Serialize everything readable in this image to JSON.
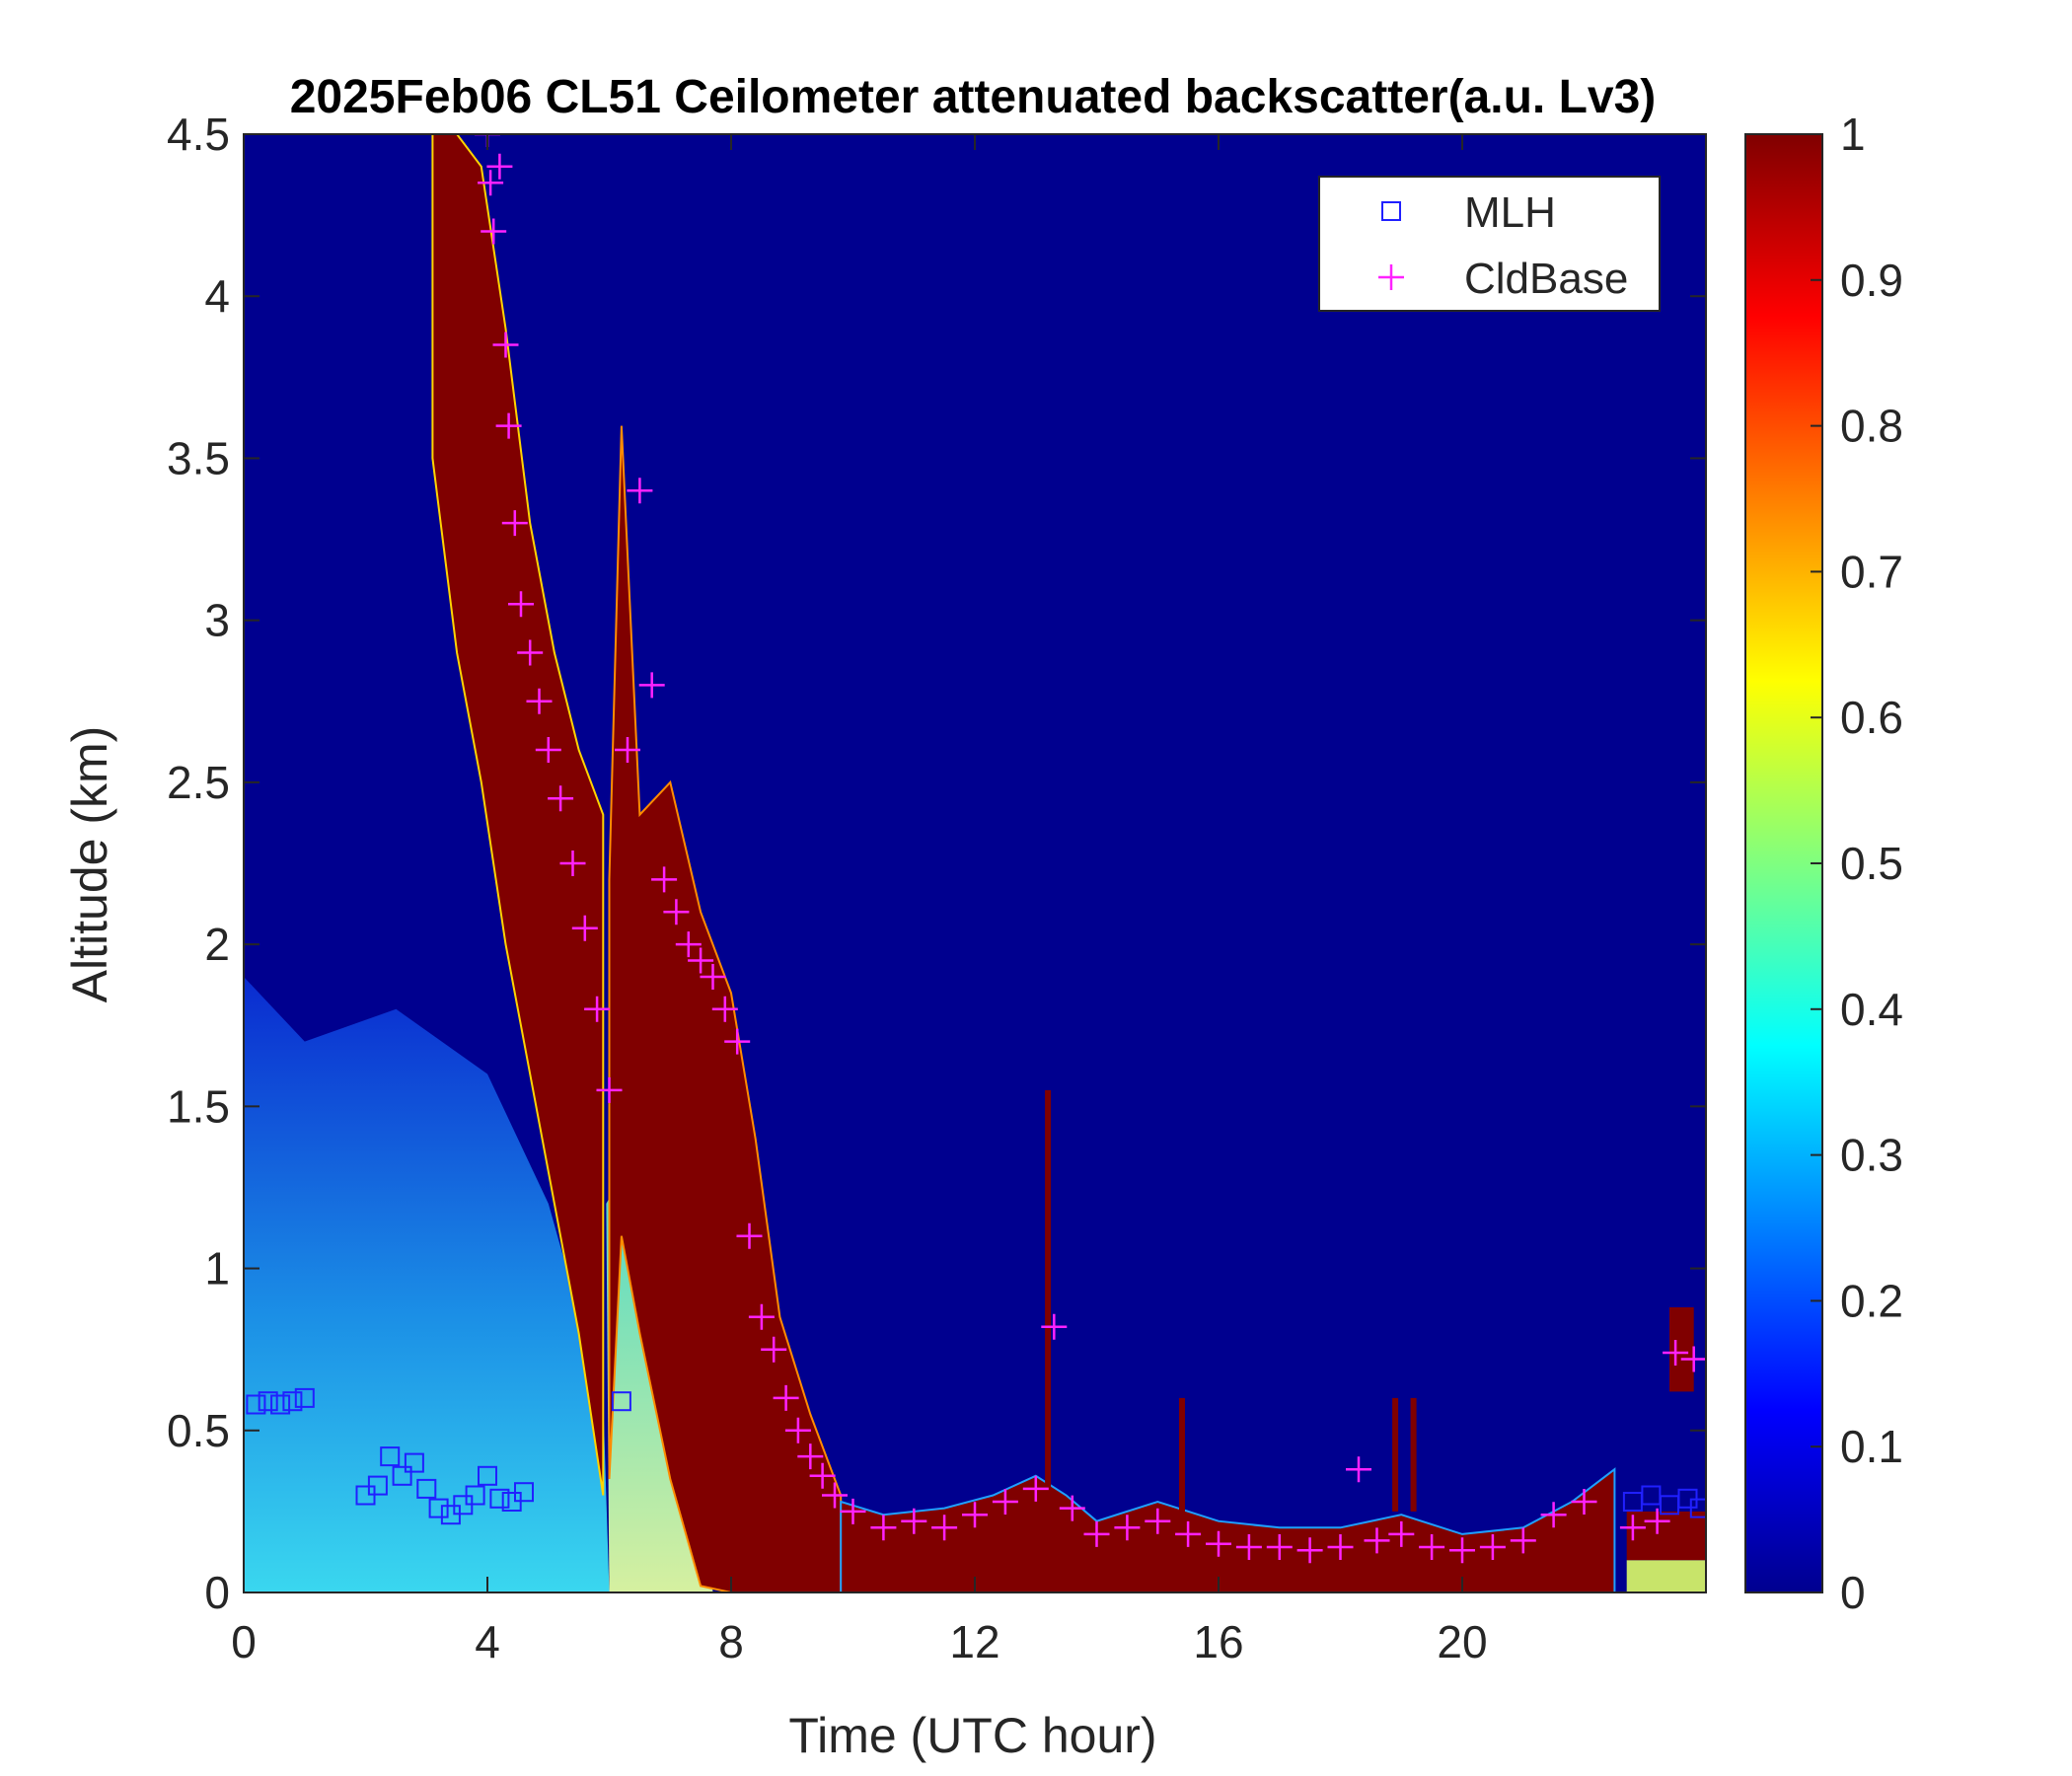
{
  "chart_data": {
    "type": "heatmap",
    "title": "2025Feb06 CL51 Ceilometer attenuated backscatter(a.u. Lv3)",
    "xlabel": "Time (UTC hour)",
    "ylabel": "Altitude (km)",
    "xlim": [
      0,
      24
    ],
    "ylim": [
      0,
      4.5
    ],
    "x_ticks": [
      {
        "value": 0,
        "label": "0"
      },
      {
        "value": 4,
        "label": "4"
      },
      {
        "value": 8,
        "label": "8"
      },
      {
        "value": 12,
        "label": "12"
      },
      {
        "value": 16,
        "label": "16"
      },
      {
        "value": 20,
        "label": "20"
      }
    ],
    "y_ticks": [
      {
        "value": 0,
        "label": "0"
      },
      {
        "value": 0.5,
        "label": "0.5"
      },
      {
        "value": 1,
        "label": "1"
      },
      {
        "value": 1.5,
        "label": "1.5"
      },
      {
        "value": 2,
        "label": "2"
      },
      {
        "value": 2.5,
        "label": "2.5"
      },
      {
        "value": 3,
        "label": "3"
      },
      {
        "value": 3.5,
        "label": "3.5"
      },
      {
        "value": 4,
        "label": "4"
      },
      {
        "value": 4.5,
        "label": "4.5"
      }
    ],
    "colorbar": {
      "colormap": "jet",
      "range": [
        0,
        1
      ],
      "ticks": [
        {
          "value": 0,
          "label": "0"
        },
        {
          "value": 0.1,
          "label": "0.1"
        },
        {
          "value": 0.2,
          "label": "0.2"
        },
        {
          "value": 0.3,
          "label": "0.3"
        },
        {
          "value": 0.4,
          "label": "0.4"
        },
        {
          "value": 0.5,
          "label": "0.5"
        },
        {
          "value": 0.6,
          "label": "0.6"
        },
        {
          "value": 0.7,
          "label": "0.7"
        },
        {
          "value": 0.8,
          "label": "0.8"
        },
        {
          "value": 0.9,
          "label": "0.9"
        },
        {
          "value": 1,
          "label": "1"
        }
      ]
    },
    "legend": {
      "position": "top-right",
      "entries": [
        {
          "label": "MLH",
          "marker": "square",
          "color": "#2020ff"
        },
        {
          "label": "CldBase",
          "marker": "plus",
          "color": "#ff22ff"
        }
      ]
    },
    "background_value": 0.02,
    "upper_cloud_band": [
      {
        "t": 3.1,
        "top": 4.5,
        "bottom": 3.5
      },
      {
        "t": 3.5,
        "top": 4.5,
        "bottom": 2.9
      },
      {
        "t": 3.9,
        "top": 4.4,
        "bottom": 2.5
      },
      {
        "t": 4.3,
        "top": 3.9,
        "bottom": 2.0
      },
      {
        "t": 4.7,
        "top": 3.3,
        "bottom": 1.6
      },
      {
        "t": 5.1,
        "top": 2.9,
        "bottom": 1.2
      },
      {
        "t": 5.5,
        "top": 2.6,
        "bottom": 0.8
      },
      {
        "t": 5.9,
        "top": 2.4,
        "bottom": 0.3
      }
    ],
    "plume_band": [
      {
        "t": 6.0,
        "top": 2.2,
        "bottom": 0.35
      },
      {
        "t": 6.2,
        "top": 3.6,
        "bottom": 1.1
      },
      {
        "t": 6.5,
        "top": 2.4,
        "bottom": 0.8
      },
      {
        "t": 7.0,
        "top": 2.5,
        "bottom": 0.35
      },
      {
        "t": 7.5,
        "top": 2.1,
        "bottom": 0.02
      },
      {
        "t": 8.0,
        "top": 1.85,
        "bottom": 0.0
      },
      {
        "t": 8.4,
        "top": 1.4,
        "bottom": 0.0
      },
      {
        "t": 8.8,
        "top": 0.85,
        "bottom": 0.0
      },
      {
        "t": 9.3,
        "top": 0.55,
        "bottom": 0.0
      },
      {
        "t": 9.8,
        "top": 0.3,
        "bottom": 0.0
      }
    ],
    "surface_layer": [
      {
        "t": 9.8,
        "top": 0.28
      },
      {
        "t": 10.5,
        "top": 0.24
      },
      {
        "t": 11.5,
        "top": 0.26
      },
      {
        "t": 12.3,
        "top": 0.3
      },
      {
        "t": 13.0,
        "top": 0.36
      },
      {
        "t": 13.5,
        "top": 0.3
      },
      {
        "t": 14.0,
        "top": 0.22
      },
      {
        "t": 15.0,
        "top": 0.28
      },
      {
        "t": 16.0,
        "top": 0.22
      },
      {
        "t": 17.0,
        "top": 0.2
      },
      {
        "t": 18.0,
        "top": 0.2
      },
      {
        "t": 19.0,
        "top": 0.24
      },
      {
        "t": 20.0,
        "top": 0.18
      },
      {
        "t": 21.0,
        "top": 0.2
      },
      {
        "t": 21.8,
        "top": 0.28
      },
      {
        "t": 22.5,
        "top": 0.38
      }
    ],
    "mlh_points": [
      {
        "t": 0.2,
        "z": 0.58
      },
      {
        "t": 0.4,
        "z": 0.59
      },
      {
        "t": 0.6,
        "z": 0.58
      },
      {
        "t": 0.8,
        "z": 0.59
      },
      {
        "t": 1.0,
        "z": 0.6
      },
      {
        "t": 2.0,
        "z": 0.3
      },
      {
        "t": 2.2,
        "z": 0.33
      },
      {
        "t": 2.4,
        "z": 0.42
      },
      {
        "t": 2.6,
        "z": 0.36
      },
      {
        "t": 2.8,
        "z": 0.4
      },
      {
        "t": 3.0,
        "z": 0.32
      },
      {
        "t": 3.2,
        "z": 0.26
      },
      {
        "t": 3.4,
        "z": 0.24
      },
      {
        "t": 3.6,
        "z": 0.27
      },
      {
        "t": 3.8,
        "z": 0.3
      },
      {
        "t": 4.0,
        "z": 0.36
      },
      {
        "t": 4.2,
        "z": 0.29
      },
      {
        "t": 4.4,
        "z": 0.28
      },
      {
        "t": 4.6,
        "z": 0.31
      },
      {
        "t": 6.2,
        "z": 0.59
      },
      {
        "t": 22.8,
        "z": 0.28
      },
      {
        "t": 23.1,
        "z": 0.3
      },
      {
        "t": 23.4,
        "z": 0.27
      },
      {
        "t": 23.7,
        "z": 0.29
      },
      {
        "t": 23.9,
        "z": 0.26
      }
    ],
    "cldbase_points": [
      {
        "t": 4.0,
        "z": 4.5
      },
      {
        "t": 4.05,
        "z": 4.35
      },
      {
        "t": 4.1,
        "z": 4.2
      },
      {
        "t": 4.2,
        "z": 4.4
      },
      {
        "t": 4.3,
        "z": 3.85
      },
      {
        "t": 4.35,
        "z": 3.6
      },
      {
        "t": 4.45,
        "z": 3.3
      },
      {
        "t": 4.55,
        "z": 3.05
      },
      {
        "t": 4.7,
        "z": 2.9
      },
      {
        "t": 4.85,
        "z": 2.75
      },
      {
        "t": 5.0,
        "z": 2.6
      },
      {
        "t": 5.2,
        "z": 2.45
      },
      {
        "t": 5.4,
        "z": 2.25
      },
      {
        "t": 5.6,
        "z": 2.05
      },
      {
        "t": 5.8,
        "z": 1.8
      },
      {
        "t": 6.0,
        "z": 1.55
      },
      {
        "t": 6.3,
        "z": 2.6
      },
      {
        "t": 6.5,
        "z": 3.4
      },
      {
        "t": 6.7,
        "z": 2.8
      },
      {
        "t": 6.9,
        "z": 2.2
      },
      {
        "t": 7.1,
        "z": 2.1
      },
      {
        "t": 7.3,
        "z": 2.0
      },
      {
        "t": 7.5,
        "z": 1.95
      },
      {
        "t": 7.7,
        "z": 1.9
      },
      {
        "t": 7.9,
        "z": 1.8
      },
      {
        "t": 8.1,
        "z": 1.7
      },
      {
        "t": 8.3,
        "z": 1.1
      },
      {
        "t": 8.5,
        "z": 0.85
      },
      {
        "t": 8.7,
        "z": 0.75
      },
      {
        "t": 8.9,
        "z": 0.6
      },
      {
        "t": 9.1,
        "z": 0.5
      },
      {
        "t": 9.3,
        "z": 0.42
      },
      {
        "t": 9.5,
        "z": 0.36
      },
      {
        "t": 9.7,
        "z": 0.3
      },
      {
        "t": 10.0,
        "z": 0.25
      },
      {
        "t": 10.5,
        "z": 0.2
      },
      {
        "t": 11.0,
        "z": 0.22
      },
      {
        "t": 11.5,
        "z": 0.2
      },
      {
        "t": 12.0,
        "z": 0.24
      },
      {
        "t": 12.5,
        "z": 0.28
      },
      {
        "t": 13.0,
        "z": 0.32
      },
      {
        "t": 13.3,
        "z": 0.82
      },
      {
        "t": 13.6,
        "z": 0.26
      },
      {
        "t": 14.0,
        "z": 0.18
      },
      {
        "t": 14.5,
        "z": 0.2
      },
      {
        "t": 15.0,
        "z": 0.22
      },
      {
        "t": 15.5,
        "z": 0.18
      },
      {
        "t": 16.0,
        "z": 0.15
      },
      {
        "t": 16.5,
        "z": 0.14
      },
      {
        "t": 17.0,
        "z": 0.14
      },
      {
        "t": 17.5,
        "z": 0.13
      },
      {
        "t": 18.0,
        "z": 0.14
      },
      {
        "t": 18.3,
        "z": 0.38
      },
      {
        "t": 18.6,
        "z": 0.16
      },
      {
        "t": 19.0,
        "z": 0.18
      },
      {
        "t": 19.5,
        "z": 0.14
      },
      {
        "t": 20.0,
        "z": 0.13
      },
      {
        "t": 20.5,
        "z": 0.14
      },
      {
        "t": 21.0,
        "z": 0.16
      },
      {
        "t": 21.5,
        "z": 0.24
      },
      {
        "t": 22.0,
        "z": 0.28
      },
      {
        "t": 22.8,
        "z": 0.2
      },
      {
        "t": 23.2,
        "z": 0.22
      },
      {
        "t": 23.5,
        "z": 0.74
      },
      {
        "t": 23.8,
        "z": 0.72
      }
    ]
  }
}
